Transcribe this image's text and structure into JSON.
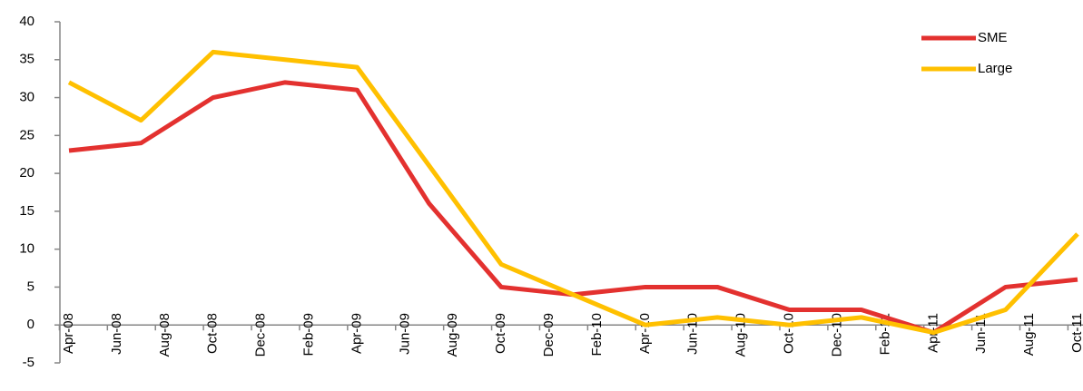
{
  "chart_data": {
    "type": "line",
    "categories": [
      "Apr-08",
      null,
      "Jun-08",
      null,
      "Aug-08",
      null,
      "Oct-08",
      null,
      "Dec-08",
      null,
      "Feb-09",
      null,
      "Apr-09",
      null,
      "Jun-09",
      null,
      "Aug-09",
      null,
      "Oct-09",
      null,
      "Dec-09",
      null,
      "Feb-10",
      null,
      "Apr-10",
      null,
      "Jun-10",
      null,
      "Aug-10",
      null,
      "Oct-10",
      null,
      "Dec-10",
      null,
      "Feb-11",
      null,
      "Apr-11",
      null,
      "Jun-11",
      null,
      "Aug-11",
      null,
      "Oct-11"
    ],
    "series": [
      {
        "name": "SME",
        "color": "#e3312f",
        "values": [
          23,
          null,
          null,
          24,
          null,
          null,
          30,
          null,
          null,
          32,
          null,
          null,
          31,
          null,
          null,
          16,
          null,
          null,
          5,
          null,
          null,
          4,
          null,
          null,
          5,
          null,
          null,
          5,
          null,
          null,
          2,
          null,
          null,
          2,
          null,
          null,
          -1,
          null,
          null,
          5,
          null,
          null,
          6
        ]
      },
      {
        "name": "Large",
        "color": "#ffc000",
        "values": [
          32,
          null,
          null,
          27,
          null,
          null,
          36,
          null,
          null,
          35,
          null,
          null,
          34,
          null,
          null,
          21,
          null,
          null,
          8,
          null,
          null,
          4,
          null,
          null,
          0,
          null,
          null,
          1,
          null,
          null,
          0,
          null,
          null,
          1,
          null,
          null,
          -1,
          null,
          null,
          2,
          null,
          null,
          12
        ]
      }
    ],
    "connect_gaps": true,
    "ylim": [
      -5,
      40
    ],
    "yticks": [
      -5,
      0,
      5,
      10,
      15,
      20,
      25,
      30,
      35,
      40
    ],
    "legend": "top-right"
  }
}
